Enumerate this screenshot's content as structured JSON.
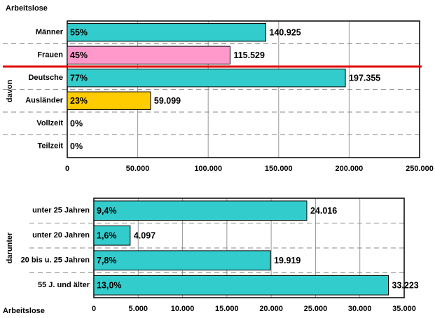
{
  "chart_data": [
    {
      "type": "bar",
      "orientation": "horizontal",
      "title": "Arbeitslose",
      "ylabel": "davon",
      "categories": [
        "Männer",
        "Frauen",
        "Deutsche",
        "Ausländer",
        "Vollzeit",
        "Teilzeit"
      ],
      "values": [
        140925,
        115529,
        197355,
        59099,
        0,
        0
      ],
      "value_labels": [
        "140.925",
        "115.529",
        "197.355",
        "59.099",
        null,
        null
      ],
      "shares": [
        55,
        45,
        77,
        23,
        0,
        0
      ],
      "share_labels": [
        "55%",
        "45%",
        "77%",
        "23%",
        "0%",
        "0%"
      ],
      "colors": [
        "#33cccc",
        "#ff99cc",
        "#33cccc",
        "#ffcc00",
        "#33cccc",
        "#33cccc"
      ],
      "xlim": [
        0,
        250000
      ],
      "xticks": [
        0,
        {
          "value": 50000,
          "label": "50.000"
        },
        {
          "value": 100000,
          "label": "100.000"
        },
        {
          "value": 150000,
          "label": "150.000"
        },
        {
          "value": 200000,
          "label": "200.000"
        },
        {
          "value": 250000,
          "label": "250.000"
        }
      ],
      "grid": true
    },
    {
      "type": "bar",
      "orientation": "horizontal",
      "ylabel": "darunter",
      "xlabel": "Arbeitslose",
      "categories": [
        "unter 25 Jahren",
        "unter 20 Jahren",
        "20 bis u. 25 Jahren",
        "55 J. und älter"
      ],
      "values": [
        24016,
        4097,
        19919,
        33223
      ],
      "value_labels": [
        "24.016",
        "4.097",
        "19.919",
        "33.223"
      ],
      "shares": [
        9.4,
        1.6,
        7.8,
        13.0
      ],
      "share_labels": [
        "9,4%",
        "1,6%",
        "7,8%",
        "13,0%"
      ],
      "colors": [
        "#33cccc",
        "#33cccc",
        "#33cccc",
        "#33cccc"
      ],
      "xlim": [
        0,
        35000
      ],
      "xticks": [
        0,
        {
          "value": 5000,
          "label": "5.000"
        },
        {
          "value": 10000,
          "label": "10.000"
        },
        {
          "value": 15000,
          "label": "15.000"
        },
        {
          "value": 20000,
          "label": "20.000"
        },
        {
          "value": 25000,
          "label": "25.000"
        },
        {
          "value": 30000,
          "label": "30.000"
        },
        {
          "value": 35000,
          "label": "35.000"
        }
      ],
      "grid": true
    }
  ]
}
